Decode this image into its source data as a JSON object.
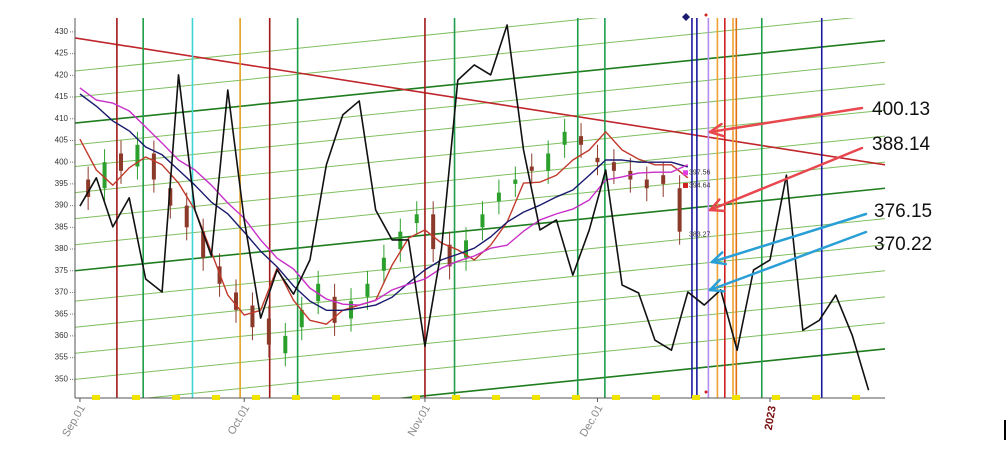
{
  "chart_data": {
    "type": "line",
    "xlim": [
      -0.6,
      98
    ],
    "ylim": [
      345.7,
      433.2
    ],
    "yticks": [
      350,
      355,
      360,
      365,
      370,
      375,
      380,
      385,
      390,
      395,
      400,
      405,
      410,
      415,
      420,
      425,
      430
    ],
    "xticks": [
      {
        "value": 0,
        "label": "Sep.01"
      },
      {
        "value": 20,
        "label": "Oct.01"
      },
      {
        "value": 42,
        "label": "Nov.01"
      },
      {
        "value": 63,
        "label": "Dec.01"
      },
      {
        "value": 84,
        "label": "2023"
      }
    ],
    "series": [
      {
        "color": "#c0392b",
        "x": [
          0,
          2,
          4,
          6,
          8,
          10,
          12,
          14,
          16,
          18,
          20,
          22,
          24,
          26,
          28,
          30,
          32,
          34,
          36,
          38,
          40,
          42,
          44,
          46,
          48,
          50,
          52,
          54,
          56,
          58,
          60,
          62,
          64,
          66,
          68,
          70,
          72,
          74
        ],
        "values": [
          405.3,
          398.2,
          394.7,
          398.7,
          401.2,
          399.4,
          395.2,
          389.0,
          379.3,
          369.4,
          364.8,
          365.9,
          375.6,
          368.2,
          363.6,
          362.7,
          365.9,
          367.1,
          368.2,
          376.3,
          382.5,
          384.4,
          381.4,
          379.8,
          377.5,
          380.9,
          386.2,
          395.2,
          395.4,
          397.0,
          400.5,
          402.8,
          407.0,
          402.8,
          400.7,
          399.4,
          399.4,
          396.4
        ]
      },
      {
        "color": "#1a1a6e",
        "x": [
          0,
          2,
          4,
          6,
          8,
          10,
          12,
          14,
          16,
          18,
          20,
          22,
          24,
          26,
          28,
          30,
          32,
          34,
          36,
          38,
          40,
          42,
          44,
          46,
          48,
          50,
          52,
          54,
          56,
          58,
          60,
          62,
          64,
          66,
          68,
          70,
          72,
          74
        ],
        "values": [
          415.7,
          412.9,
          409.5,
          407.2,
          403.5,
          401.7,
          398.2,
          394.7,
          390.8,
          388.1,
          383.9,
          379.5,
          375.9,
          371.5,
          368.0,
          365.9,
          365.9,
          366.4,
          367.1,
          368.9,
          372.2,
          375.2,
          377.5,
          378.8,
          380.2,
          382.8,
          386.2,
          388.5,
          390.1,
          392.0,
          393.6,
          397.0,
          400.5,
          400.5,
          400.0,
          400.0,
          400.0,
          398.9
        ]
      },
      {
        "color": "#c72fc7",
        "x": [
          0,
          2,
          4,
          6,
          8,
          10,
          12,
          14,
          16,
          18,
          20,
          22,
          24,
          26,
          28,
          30,
          32,
          34,
          36,
          38,
          40,
          42,
          44,
          46,
          48,
          50,
          52,
          54,
          56,
          58,
          60,
          62,
          64,
          66,
          68,
          70,
          72,
          74
        ],
        "values": [
          417.1,
          414.3,
          413.6,
          411.8,
          408.1,
          404.4,
          400.5,
          398.2,
          394.7,
          390.6,
          387.1,
          382.1,
          377.9,
          375.4,
          371.0,
          368.5,
          367.3,
          367.1,
          368.2,
          370.6,
          371.9,
          373.1,
          375.6,
          377.2,
          378.4,
          380.2,
          380.9,
          384.1,
          386.7,
          388.1,
          389.2,
          391.3,
          395.9,
          396.6,
          397.5,
          397.7,
          397.7,
          399.4
        ]
      },
      {
        "color": "#111111",
        "x": [
          0,
          2,
          4,
          6,
          8,
          10,
          12,
          14,
          16,
          18,
          20,
          22,
          24,
          26,
          28,
          30,
          32,
          34,
          36,
          38,
          40,
          42,
          44,
          46,
          48,
          50,
          52,
          54,
          56,
          58,
          60,
          62,
          64,
          66,
          68,
          70,
          72,
          74,
          76,
          78,
          80,
          82,
          84,
          86,
          88,
          90,
          92,
          94,
          96
        ],
        "values": [
          389.9,
          396.4,
          385.1,
          391.8,
          373.1,
          370.1,
          420.1,
          389.0,
          378.4,
          416.6,
          386.7,
          364.1,
          375.2,
          369.6,
          377.5,
          399.4,
          410.9,
          414.1,
          389.0,
          382.1,
          382.1,
          357.6,
          379.8,
          418.9,
          422.4,
          420.1,
          431.6,
          402.8,
          384.4,
          386.7,
          374.0,
          384.4,
          398.2,
          371.7,
          369.9,
          359.0,
          356.7,
          370.1,
          367.1,
          370.6,
          356.7,
          375.2,
          377.5,
          397.0,
          361.3,
          363.6,
          369.4,
          360.2,
          347.5
        ]
      }
    ],
    "candles": {
      "up_color": "#2ca02c",
      "down_color": "#8b3a2a",
      "x": [
        1,
        3,
        5,
        7,
        9,
        11,
        13,
        15,
        17,
        19,
        21,
        23,
        25,
        27,
        29,
        31,
        33,
        35,
        37,
        39,
        41,
        43,
        45,
        47,
        49,
        51,
        53,
        55,
        57,
        59,
        61,
        63,
        65,
        67,
        69,
        71,
        73
      ],
      "open": [
        396,
        394,
        402,
        399,
        402,
        394,
        390,
        384,
        376,
        370,
        367,
        364,
        356,
        362,
        368,
        369,
        364,
        369,
        375,
        380,
        386,
        388,
        381,
        378,
        385,
        391,
        395,
        399,
        398,
        404,
        406,
        401,
        400,
        398,
        396,
        397,
        394
      ],
      "high": [
        399,
        403,
        405,
        407,
        405,
        397,
        393,
        387,
        379,
        373,
        370,
        367,
        363,
        369,
        375,
        372,
        371,
        375,
        381,
        387,
        391,
        391,
        384,
        385,
        391,
        396,
        399,
        402,
        405,
        410,
        409,
        404,
        403,
        401,
        399,
        400,
        397
      ],
      "low": [
        389,
        391,
        395,
        396,
        393,
        387,
        382,
        375,
        369,
        363,
        359,
        355,
        353,
        359,
        365,
        360,
        361,
        366,
        372,
        377,
        383,
        377,
        373,
        375,
        382,
        388,
        392,
        395,
        395,
        401,
        401,
        397,
        395,
        393,
        391,
        392,
        381
      ],
      "close": [
        392,
        400,
        398,
        404,
        396,
        390,
        385,
        378,
        372,
        366,
        362,
        358,
        360,
        366,
        372,
        363,
        368,
        372,
        378,
        384,
        388,
        380,
        376,
        382,
        388,
        393,
        396,
        398,
        402,
        407,
        404,
        400,
        398,
        396,
        394,
        395,
        384
      ]
    },
    "trend_lines": [
      {
        "start": 338,
        "end": 357,
        "color": "#1e7d1e"
      },
      {
        "start": 344,
        "end": 363,
        "color": "#7fbf5f"
      },
      {
        "start": 350,
        "end": 369,
        "color": "#7fbf5f"
      },
      {
        "start": 356,
        "end": 375,
        "color": "#7fbf5f"
      },
      {
        "start": 362,
        "end": 381,
        "color": "#7fbf5f"
      },
      {
        "start": 368,
        "end": 387,
        "color": "#7fbf5f"
      },
      {
        "start": 375,
        "end": 394,
        "color": "#1e7d1e"
      },
      {
        "start": 381,
        "end": 400,
        "color": "#7fbf5f"
      },
      {
        "start": 387,
        "end": 406,
        "color": "#7fbf5f"
      },
      {
        "start": 393,
        "end": 412,
        "color": "#7fbf5f"
      },
      {
        "start": 399,
        "end": 418,
        "color": "#7fbf5f"
      },
      {
        "start": 404,
        "end": 423,
        "color": "#7fbf5f"
      },
      {
        "start": 409,
        "end": 428,
        "color": "#1e7d1e"
      },
      {
        "start": 415,
        "end": 434,
        "color": "#7fbf5f"
      },
      {
        "start": 421,
        "end": 440,
        "color": "#7fbf5f"
      },
      {
        "start": 428.6,
        "end": 399.4,
        "color": "#c0262b"
      }
    ],
    "vlines": [
      {
        "x": 4.5,
        "color": "#a01818"
      },
      {
        "x": 7.7,
        "color": "#1e9e4a"
      },
      {
        "x": 13.7,
        "color": "#3dd6d6"
      },
      {
        "x": 19.5,
        "color": "#e0a020"
      },
      {
        "x": 23.1,
        "color": "#a01818"
      },
      {
        "x": 26.5,
        "color": "#1e9e4a"
      },
      {
        "x": 42,
        "color": "#a01818"
      },
      {
        "x": 45.6,
        "color": "#1e9e4a"
      },
      {
        "x": 60.6,
        "color": "#1e9e4a"
      },
      {
        "x": 63.9,
        "color": "#1e9e4a"
      },
      {
        "x": 74.5,
        "color": "#1a1aa0"
      },
      {
        "x": 75.1,
        "color": "#1a1aa0"
      },
      {
        "x": 76.5,
        "color": "#b48cf0"
      },
      {
        "x": 77.6,
        "color": "#f0a030"
      },
      {
        "x": 78.5,
        "color": "#d02020"
      },
      {
        "x": 79.5,
        "color": "#f0a030"
      },
      {
        "x": 79.9,
        "color": "#e07010"
      },
      {
        "x": 83,
        "color": "#1e9e4a"
      },
      {
        "x": 90.3,
        "color": "#1a1aa0"
      }
    ],
    "price_labels": [
      397.56,
      394.64,
      383.27
    ],
    "annotations": [
      {
        "value": 400.13,
        "color": "#e8474f"
      },
      {
        "value": 388.14,
        "color": "#e8474f"
      },
      {
        "value": 376.15,
        "color": "#2a9fd6"
      },
      {
        "value": 370.22,
        "color": "#2a9fd6"
      }
    ]
  }
}
